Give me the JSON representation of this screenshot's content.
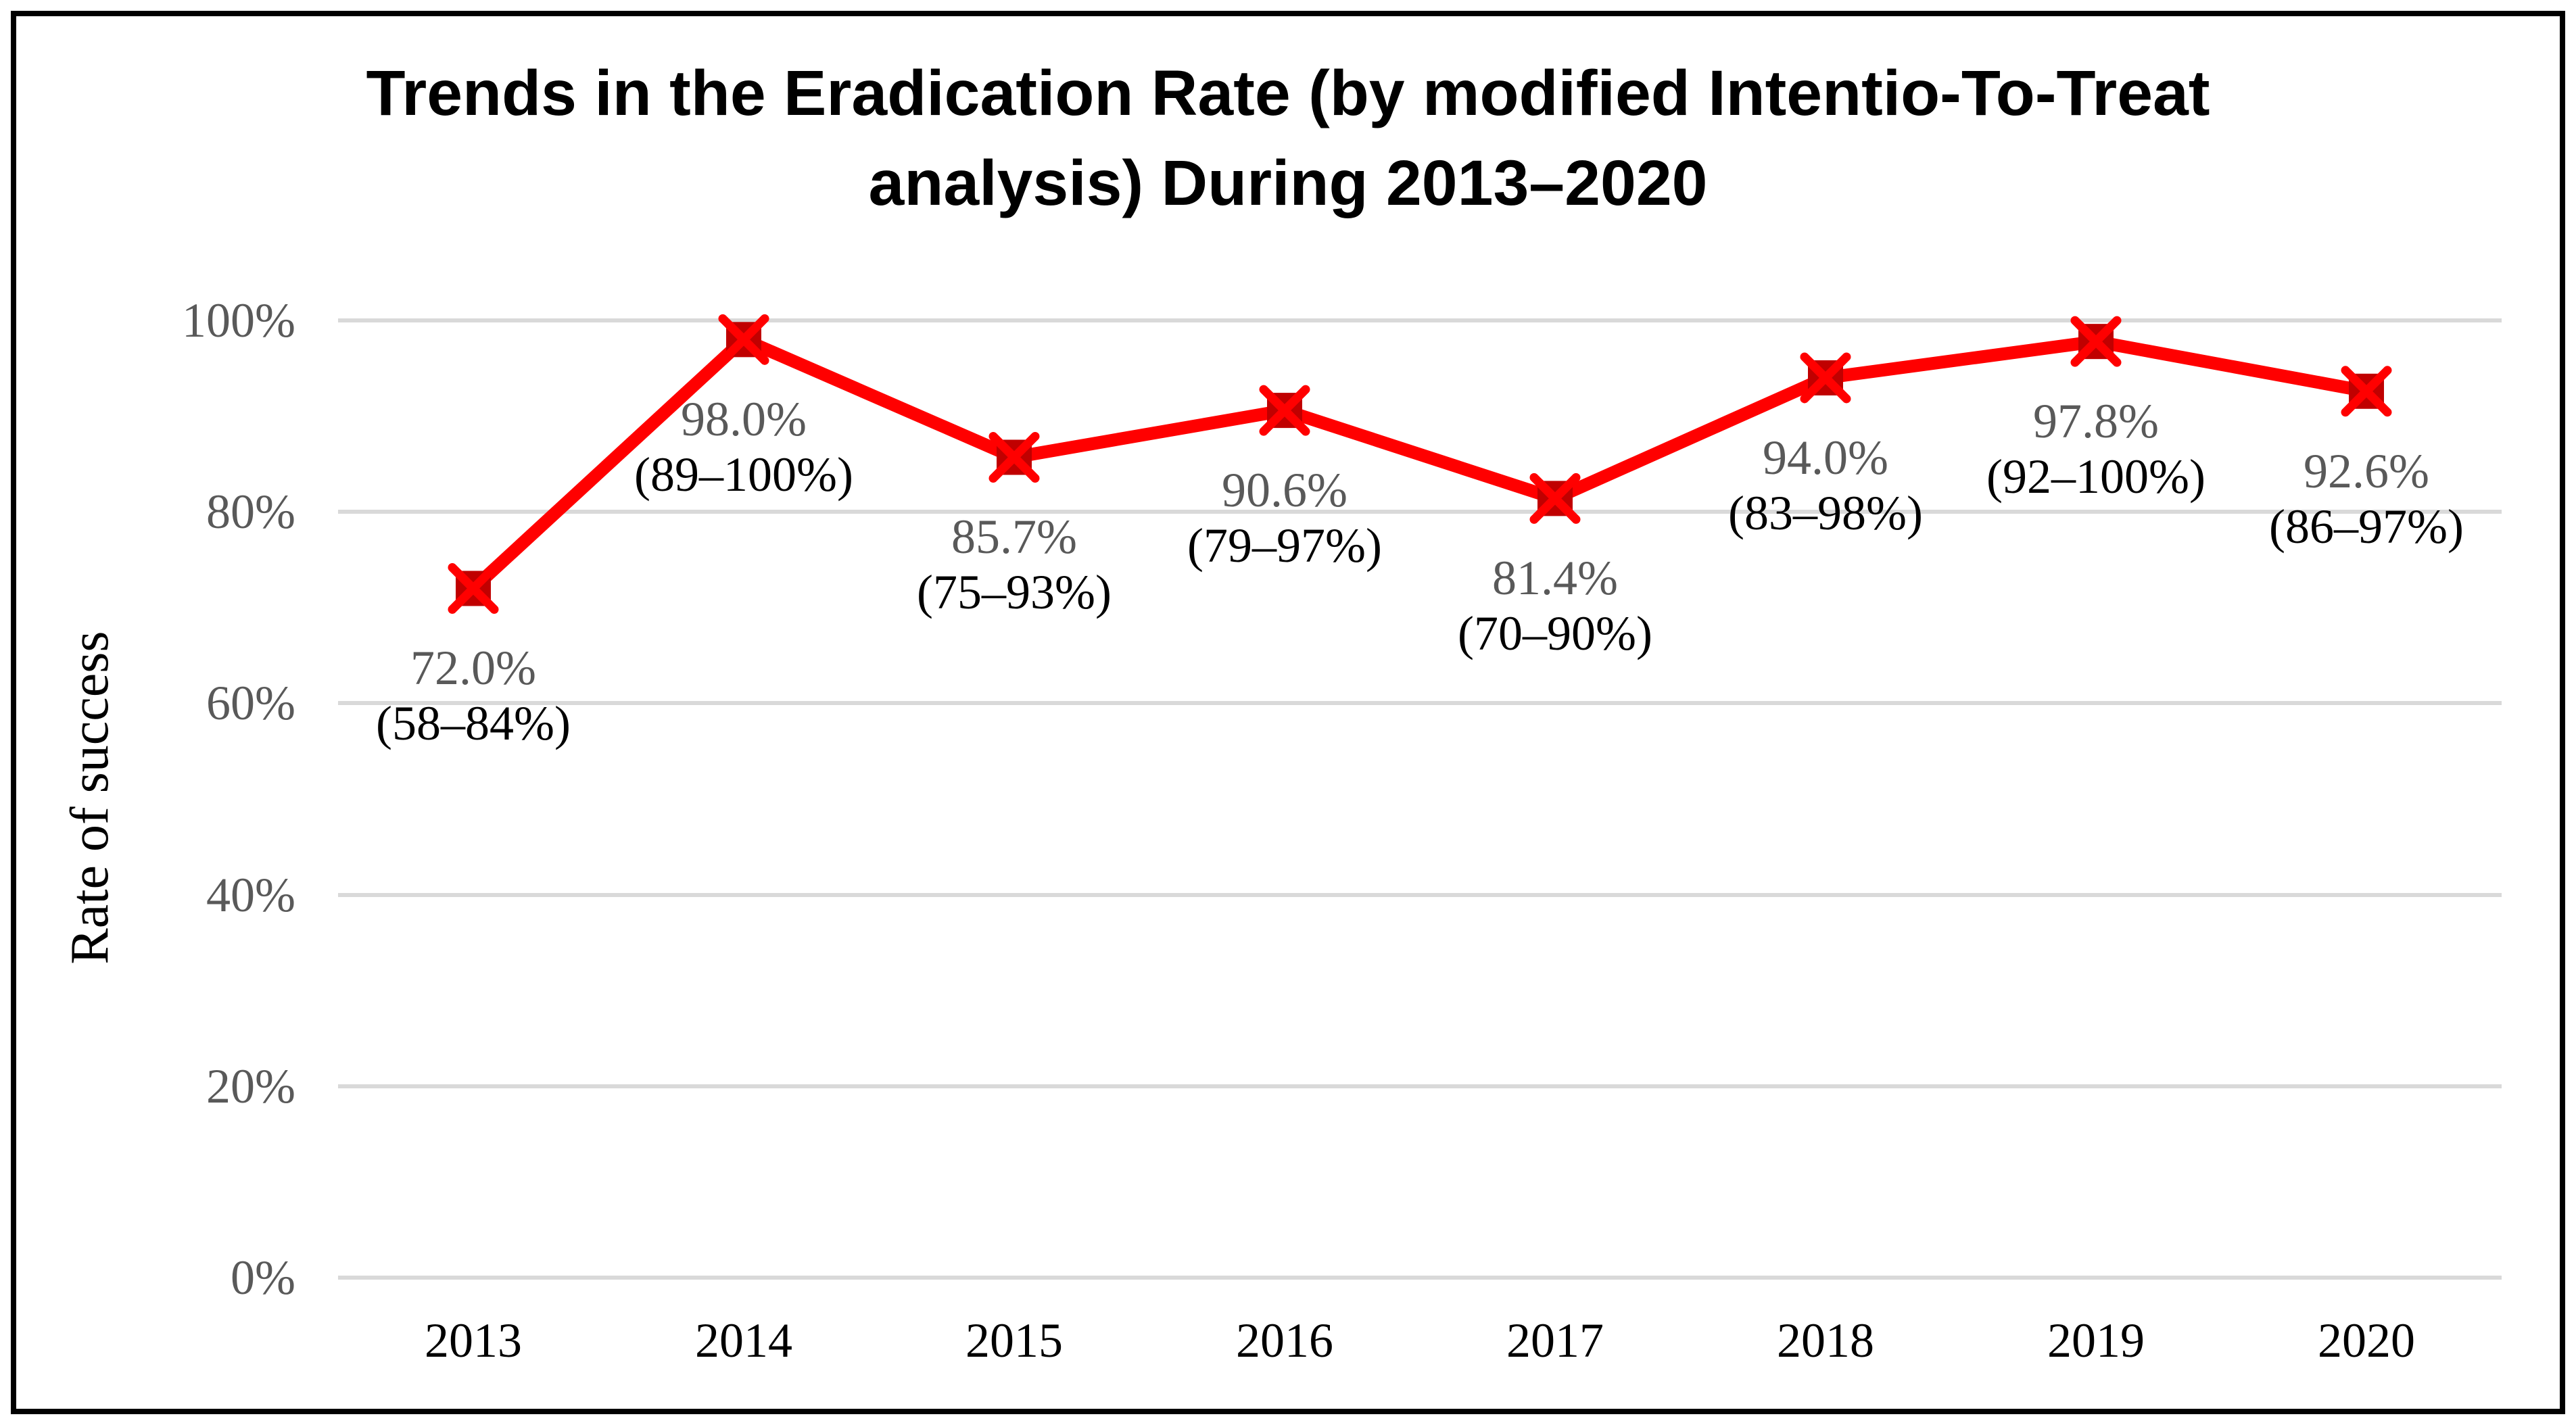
{
  "figure": {
    "title": {
      "line1": "Trends in the Eradication Rate (by modified Intentio-To-Treat",
      "line2": "analysis) During 2013–2020"
    },
    "y_axis": {
      "label": "Rate of success"
    }
  },
  "chart_data": {
    "type": "line",
    "title": "Trends in the Eradication Rate (by modified Intentio-To-Treat analysis) During 2013–2020",
    "categories": [
      "2013",
      "2014",
      "2015",
      "2016",
      "2017",
      "2018",
      "2019",
      "2020"
    ],
    "values": [
      72.0,
      98.0,
      85.7,
      90.6,
      81.4,
      94.0,
      97.8,
      92.6
    ],
    "point_labels": [
      {
        "value": "72.0%",
        "ci": "(58–84%)"
      },
      {
        "value": "98.0%",
        "ci": "(89–100%)"
      },
      {
        "value": "85.7%",
        "ci": "(75–93%)"
      },
      {
        "value": "90.6%",
        "ci": "(79–97%)"
      },
      {
        "value": "81.4%",
        "ci": "(70–90%)"
      },
      {
        "value": "94.0%",
        "ci": "(83–98%)"
      },
      {
        "value": "97.8%",
        "ci": "(92–100%)"
      },
      {
        "value": "92.6%",
        "ci": "(86–97%)"
      }
    ],
    "ylabel": "Rate of success",
    "xlabel": "",
    "ylim": [
      0,
      100
    ],
    "yticks": [
      0,
      20,
      40,
      60,
      80,
      100
    ],
    "ytick_labels": [
      "0%",
      "20%",
      "40%",
      "60%",
      "80%",
      "100%"
    ],
    "grid": true,
    "legend": "none",
    "marker": "x-in-square",
    "colors": {
      "line": "#FF0000",
      "marker_fill": "#C00000",
      "marker_x": "#FF0000",
      "gridline": "#D9D9D9",
      "value_label": "#595959",
      "ci_label": "#000000",
      "tick_label": "#595959",
      "axis_text": "#000000"
    }
  }
}
